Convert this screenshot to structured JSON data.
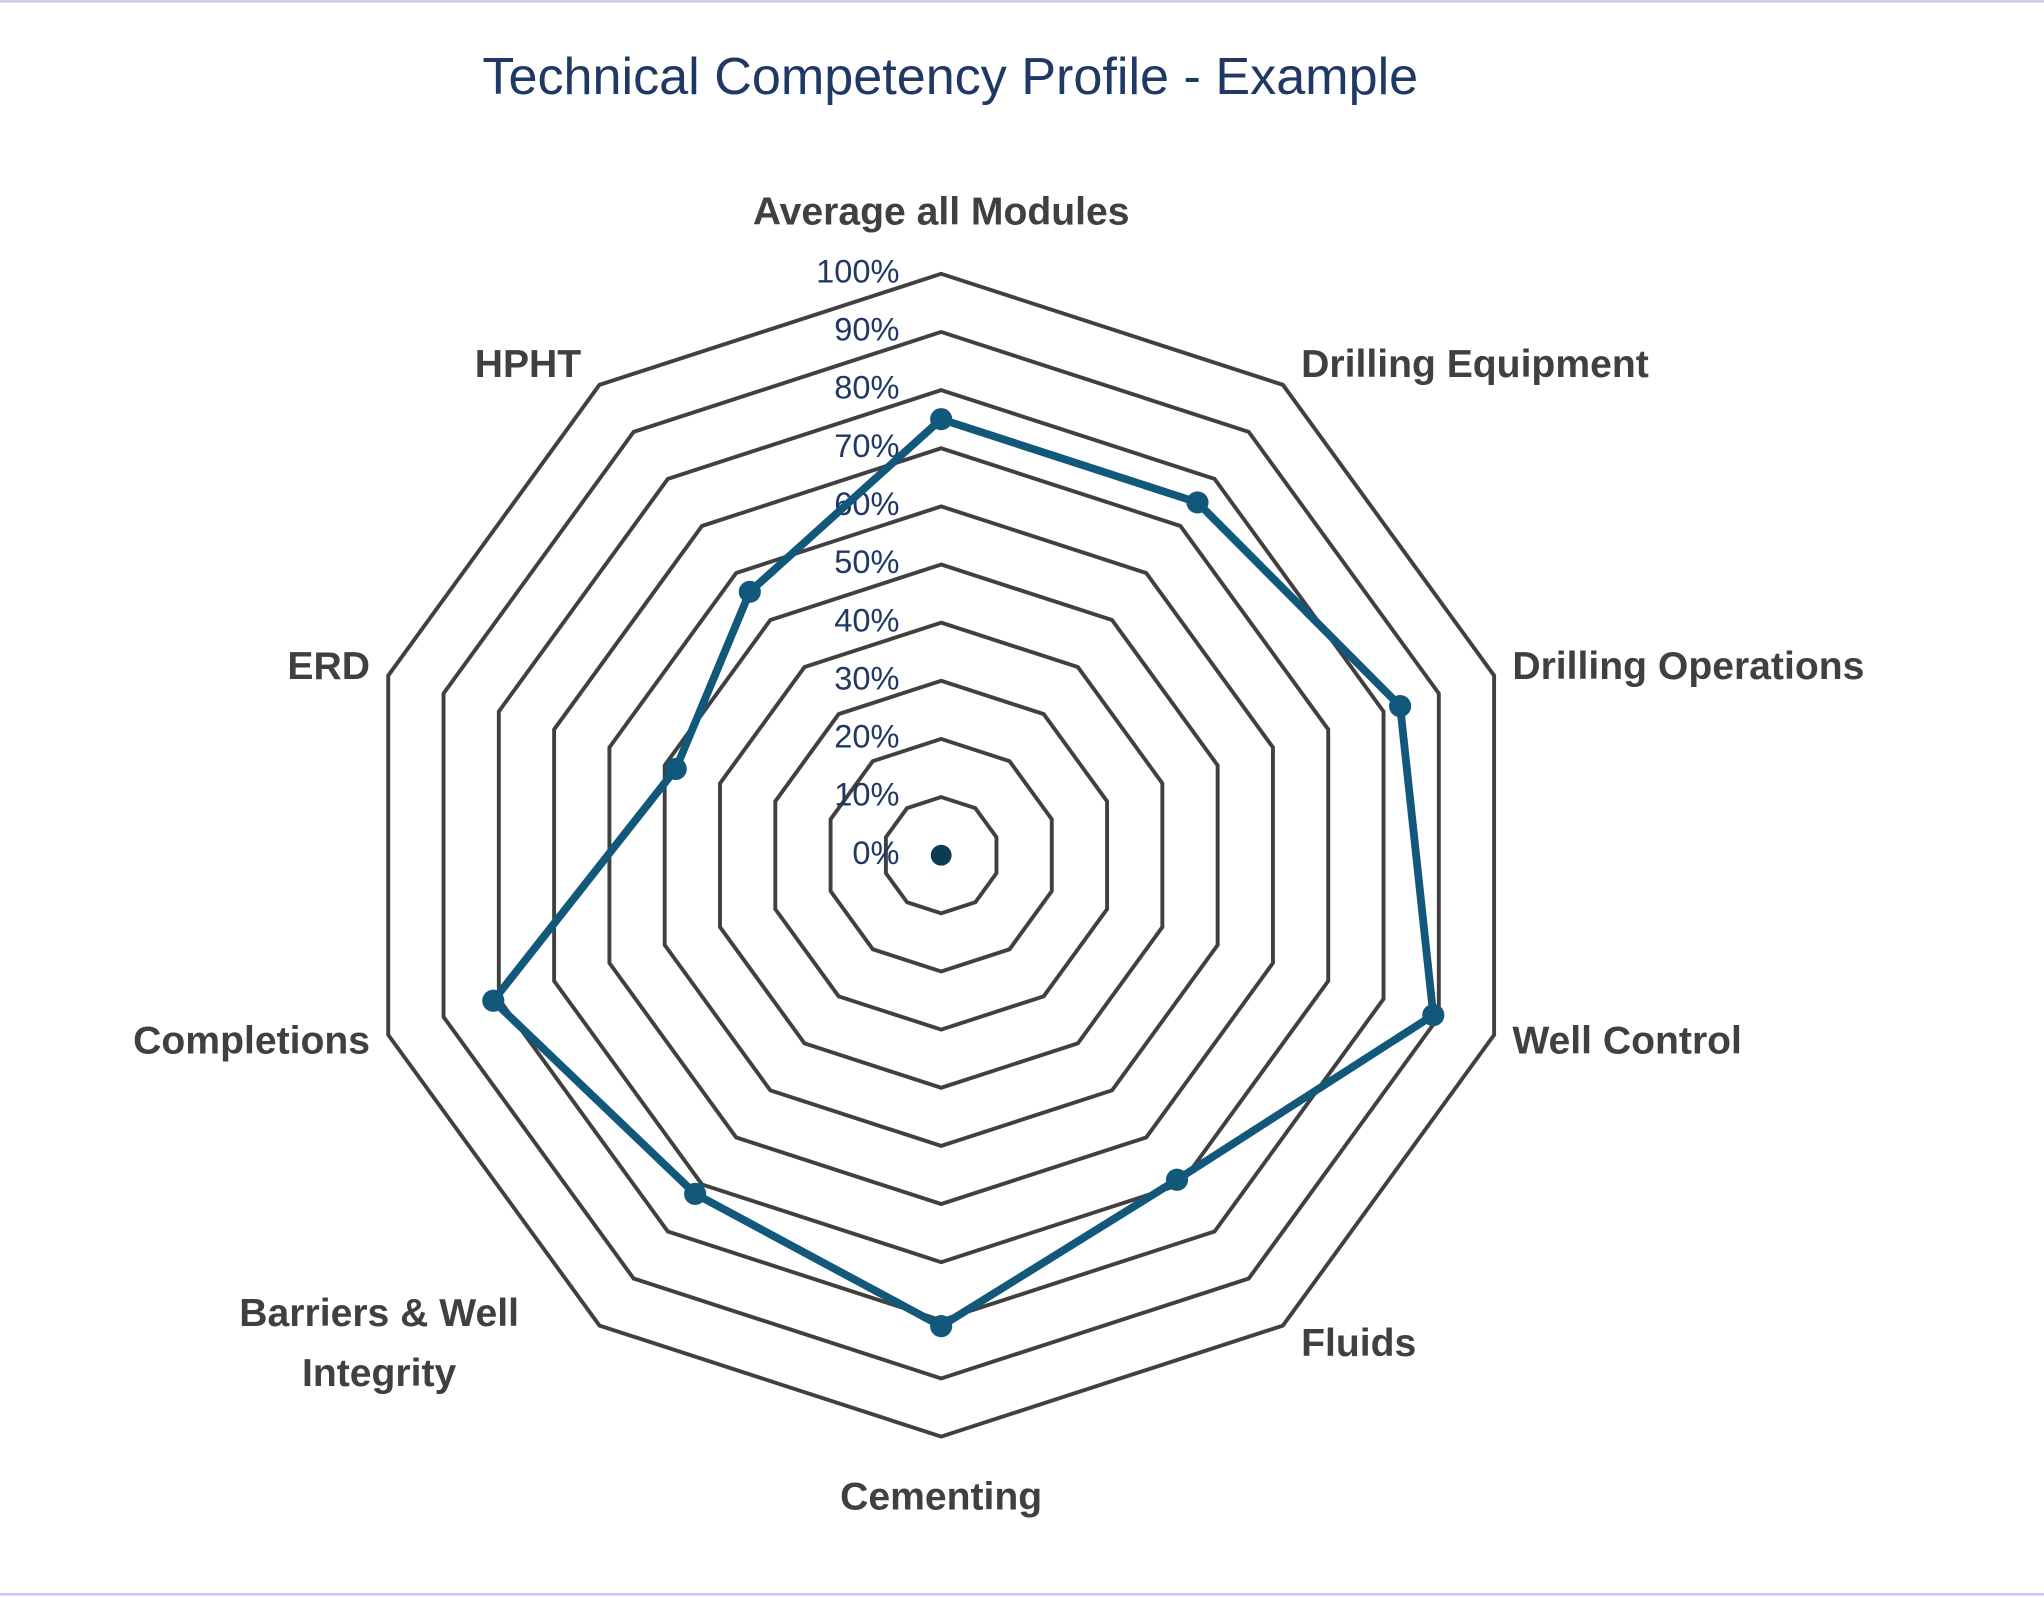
{
  "chart_data": {
    "type": "radar",
    "title": "Technical Competency Profile  - Example",
    "categories": [
      "Average all Modules",
      "Drilling Equipment",
      "Drilling Operations",
      "Well Control",
      "Fluids",
      "Cementing",
      "Barriers & Well Integrity",
      "Completions",
      "ERD",
      "HPHT"
    ],
    "values": [
      75,
      75,
      83,
      89,
      69,
      81,
      72,
      81,
      48,
      56
    ],
    "color": "#12587a",
    "grid_color": "#404040",
    "ylim": [
      0,
      100
    ],
    "yticks": [
      {
        "value": 0,
        "label": "0%"
      },
      {
        "value": 10,
        "label": "10%"
      },
      {
        "value": 20,
        "label": "20%"
      },
      {
        "value": 30,
        "label": "30%"
      },
      {
        "value": 40,
        "label": "40%"
      },
      {
        "value": 50,
        "label": "50%"
      },
      {
        "value": 60,
        "label": "60%"
      },
      {
        "value": 70,
        "label": "70%"
      },
      {
        "value": 80,
        "label": "80%"
      },
      {
        "value": 90,
        "label": "90%"
      },
      {
        "value": 100,
        "label": "100%"
      }
    ],
    "grid": true
  }
}
